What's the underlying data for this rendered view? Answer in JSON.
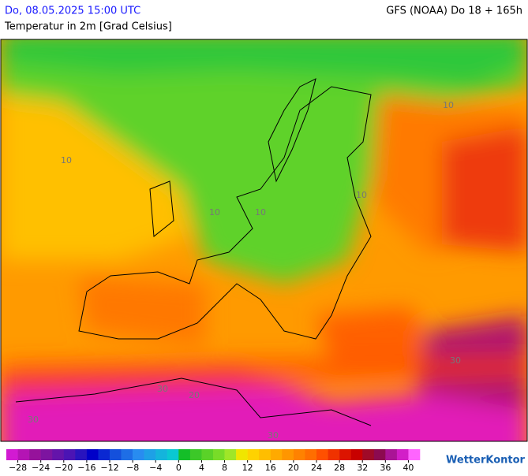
{
  "header": {
    "date": "Do, 08.05.2025 15:00 UTC",
    "model": "GFS (NOAA) Do 18 + 165h",
    "subtitle": "Temperatur in 2m [Grad Celsius]"
  },
  "map": {
    "contour_labels": [
      "10",
      "10",
      "10",
      "10",
      "10",
      "20",
      "30",
      "30",
      "30",
      "30"
    ]
  },
  "colorbar": {
    "lim": [
      -30,
      42
    ],
    "ticks": [
      {
        "value": -28,
        "label": "−28"
      },
      {
        "value": -24,
        "label": "−24"
      },
      {
        "value": -20,
        "label": "−20"
      },
      {
        "value": -16,
        "label": "−16"
      },
      {
        "value": -12,
        "label": "−12"
      },
      {
        "value": -8,
        "label": "−8"
      },
      {
        "value": -4,
        "label": "−4"
      },
      0,
      4,
      8,
      12,
      16,
      20,
      24,
      28,
      32,
      36,
      40
    ],
    "colors": [
      "#d21ad2",
      "#b414b4",
      "#96129b",
      "#7d14a0",
      "#6414aa",
      "#4b14b4",
      "#2814be",
      "#0000c8",
      "#0a28d2",
      "#1450dc",
      "#1e6ee6",
      "#288cf0",
      "#1ea0e6",
      "#14b4dc",
      "#0ac8d2",
      "#14be28",
      "#3cc828",
      "#5ad228",
      "#78dc28",
      "#a0e628",
      "#f0e600",
      "#ffd200",
      "#ffbe00",
      "#ffaa00",
      "#ff9600",
      "#ff8200",
      "#ff6e00",
      "#ff5000",
      "#f03200",
      "#dc1400",
      "#c80000",
      "#a00a28",
      "#8c0a50",
      "#aa1496",
      "#d21ec8",
      "#ff64ff"
    ]
  },
  "logo": "WetterKontor"
}
